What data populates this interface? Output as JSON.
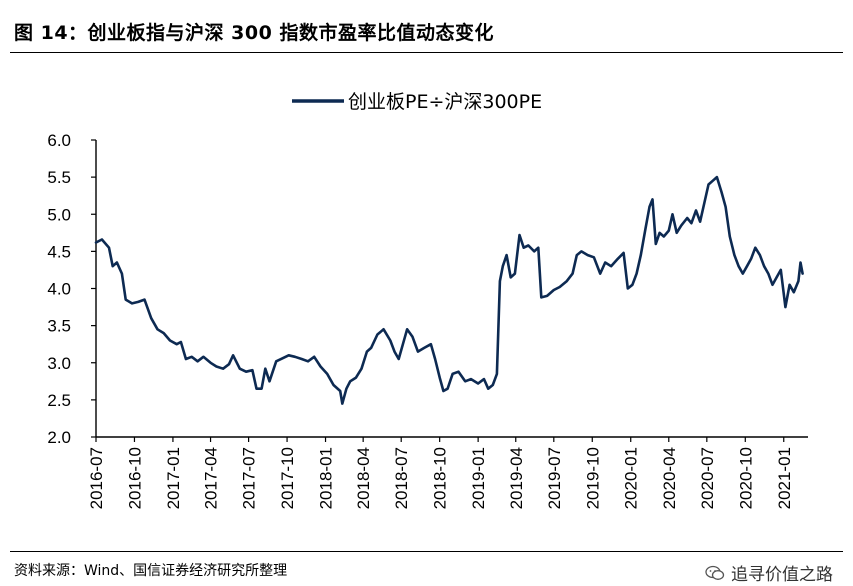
{
  "figure": {
    "title": "图 14：创业板指与沪深 300 指数市盈率比值动态变化",
    "source": "资料来源：Wind、国信证券经济研究所整理",
    "watermark": "追寻价值之路"
  },
  "chart_data": {
    "type": "line",
    "title": "",
    "xlabel": "",
    "ylabel": "",
    "ylim": [
      2.0,
      6.0
    ],
    "yticks": [
      "2.0",
      "2.5",
      "3.0",
      "3.5",
      "4.0",
      "4.5",
      "5.0",
      "5.5",
      "6.0"
    ],
    "xticks": [
      "2016-07",
      "2016-10",
      "2017-01",
      "2017-04",
      "2017-07",
      "2017-10",
      "2018-01",
      "2018-04",
      "2018-07",
      "2018-10",
      "2019-01",
      "2019-04",
      "2019-07",
      "2019-10",
      "2020-01",
      "2020-04",
      "2020-07",
      "2020-10",
      "2021-01"
    ],
    "legend": {
      "placement": "top-center"
    },
    "color": "#0d2a52",
    "series": [
      {
        "name": "创业板PE÷沪深300PE",
        "points": [
          [
            "2016-07-01",
            4.62
          ],
          [
            "2016-07-15",
            4.66
          ],
          [
            "2016-08-01",
            4.55
          ],
          [
            "2016-08-10",
            4.3
          ],
          [
            "2016-08-20",
            4.35
          ],
          [
            "2016-09-01",
            4.2
          ],
          [
            "2016-09-10",
            3.85
          ],
          [
            "2016-09-25",
            3.8
          ],
          [
            "2016-10-10",
            3.82
          ],
          [
            "2016-10-25",
            3.85
          ],
          [
            "2016-11-10",
            3.6
          ],
          [
            "2016-11-25",
            3.45
          ],
          [
            "2016-12-10",
            3.4
          ],
          [
            "2016-12-25",
            3.3
          ],
          [
            "2017-01-10",
            3.25
          ],
          [
            "2017-01-20",
            3.28
          ],
          [
            "2017-02-01",
            3.05
          ],
          [
            "2017-02-15",
            3.08
          ],
          [
            "2017-03-01",
            3.02
          ],
          [
            "2017-03-15",
            3.08
          ],
          [
            "2017-04-01",
            3.0
          ],
          [
            "2017-04-15",
            2.95
          ],
          [
            "2017-05-01",
            2.92
          ],
          [
            "2017-05-15",
            2.98
          ],
          [
            "2017-05-25",
            3.1
          ],
          [
            "2017-06-10",
            2.92
          ],
          [
            "2017-06-25",
            2.88
          ],
          [
            "2017-07-10",
            2.9
          ],
          [
            "2017-07-20",
            2.65
          ],
          [
            "2017-08-01",
            2.65
          ],
          [
            "2017-08-10",
            2.92
          ],
          [
            "2017-08-20",
            2.75
          ],
          [
            "2017-09-05",
            3.02
          ],
          [
            "2017-09-20",
            3.06
          ],
          [
            "2017-10-05",
            3.1
          ],
          [
            "2017-10-20",
            3.08
          ],
          [
            "2017-11-05",
            3.05
          ],
          [
            "2017-11-20",
            3.02
          ],
          [
            "2017-12-05",
            3.08
          ],
          [
            "2017-12-20",
            2.95
          ],
          [
            "2018-01-05",
            2.85
          ],
          [
            "2018-01-20",
            2.7
          ],
          [
            "2018-02-05",
            2.62
          ],
          [
            "2018-02-10",
            2.45
          ],
          [
            "2018-02-20",
            2.65
          ],
          [
            "2018-03-01",
            2.75
          ],
          [
            "2018-03-15",
            2.8
          ],
          [
            "2018-03-28",
            2.92
          ],
          [
            "2018-04-10",
            3.15
          ],
          [
            "2018-04-20",
            3.2
          ],
          [
            "2018-05-05",
            3.38
          ],
          [
            "2018-05-20",
            3.45
          ],
          [
            "2018-06-05",
            3.3
          ],
          [
            "2018-06-15",
            3.15
          ],
          [
            "2018-06-25",
            3.05
          ],
          [
            "2018-07-05",
            3.25
          ],
          [
            "2018-07-15",
            3.45
          ],
          [
            "2018-07-28",
            3.35
          ],
          [
            "2018-08-10",
            3.15
          ],
          [
            "2018-08-25",
            3.2
          ],
          [
            "2018-09-10",
            3.25
          ],
          [
            "2018-09-20",
            3.05
          ],
          [
            "2018-10-01",
            2.8
          ],
          [
            "2018-10-10",
            2.62
          ],
          [
            "2018-10-20",
            2.65
          ],
          [
            "2018-11-01",
            2.85
          ],
          [
            "2018-11-15",
            2.88
          ],
          [
            "2018-12-01",
            2.75
          ],
          [
            "2018-12-15",
            2.78
          ],
          [
            "2019-01-01",
            2.72
          ],
          [
            "2019-01-15",
            2.78
          ],
          [
            "2019-01-25",
            2.65
          ],
          [
            "2019-02-05",
            2.7
          ],
          [
            "2019-02-15",
            2.85
          ],
          [
            "2019-02-22",
            4.1
          ],
          [
            "2019-03-01",
            4.3
          ],
          [
            "2019-03-10",
            4.45
          ],
          [
            "2019-03-20",
            4.15
          ],
          [
            "2019-03-30",
            4.2
          ],
          [
            "2019-04-10",
            4.72
          ],
          [
            "2019-04-20",
            4.55
          ],
          [
            "2019-05-01",
            4.58
          ],
          [
            "2019-05-15",
            4.5
          ],
          [
            "2019-05-25",
            4.55
          ],
          [
            "2019-06-01",
            3.88
          ],
          [
            "2019-06-15",
            3.9
          ],
          [
            "2019-07-01",
            3.98
          ],
          [
            "2019-07-15",
            4.02
          ],
          [
            "2019-08-01",
            4.1
          ],
          [
            "2019-08-15",
            4.2
          ],
          [
            "2019-08-25",
            4.45
          ],
          [
            "2019-09-05",
            4.5
          ],
          [
            "2019-09-20",
            4.45
          ],
          [
            "2019-10-05",
            4.42
          ],
          [
            "2019-10-20",
            4.2
          ],
          [
            "2019-11-01",
            4.35
          ],
          [
            "2019-11-15",
            4.3
          ],
          [
            "2019-12-01",
            4.4
          ],
          [
            "2019-12-15",
            4.48
          ],
          [
            "2019-12-25",
            4.0
          ],
          [
            "2020-01-05",
            4.05
          ],
          [
            "2020-01-15",
            4.2
          ],
          [
            "2020-01-25",
            4.45
          ],
          [
            "2020-02-05",
            4.8
          ],
          [
            "2020-02-15",
            5.1
          ],
          [
            "2020-02-22",
            5.2
          ],
          [
            "2020-03-01",
            4.6
          ],
          [
            "2020-03-10",
            4.75
          ],
          [
            "2020-03-20",
            4.7
          ],
          [
            "2020-04-01",
            4.78
          ],
          [
            "2020-04-10",
            5.0
          ],
          [
            "2020-04-20",
            4.75
          ],
          [
            "2020-05-01",
            4.85
          ],
          [
            "2020-05-15",
            4.95
          ],
          [
            "2020-05-25",
            4.88
          ],
          [
            "2020-06-05",
            5.05
          ],
          [
            "2020-06-15",
            4.9
          ],
          [
            "2020-06-25",
            5.15
          ],
          [
            "2020-07-05",
            5.4
          ],
          [
            "2020-07-15",
            5.45
          ],
          [
            "2020-07-25",
            5.5
          ],
          [
            "2020-08-05",
            5.3
          ],
          [
            "2020-08-15",
            5.1
          ],
          [
            "2020-08-25",
            4.7
          ],
          [
            "2020-09-05",
            4.45
          ],
          [
            "2020-09-15",
            4.3
          ],
          [
            "2020-09-25",
            4.2
          ],
          [
            "2020-10-05",
            4.3
          ],
          [
            "2020-10-15",
            4.4
          ],
          [
            "2020-10-25",
            4.55
          ],
          [
            "2020-11-05",
            4.45
          ],
          [
            "2020-11-15",
            4.3
          ],
          [
            "2020-11-25",
            4.2
          ],
          [
            "2020-12-05",
            4.05
          ],
          [
            "2020-12-15",
            4.15
          ],
          [
            "2020-12-25",
            4.25
          ],
          [
            "2021-01-05",
            3.75
          ],
          [
            "2021-01-15",
            4.05
          ],
          [
            "2021-01-25",
            3.95
          ],
          [
            "2021-02-05",
            4.1
          ],
          [
            "2021-02-10",
            4.35
          ],
          [
            "2021-02-15",
            4.2
          ]
        ]
      }
    ]
  }
}
